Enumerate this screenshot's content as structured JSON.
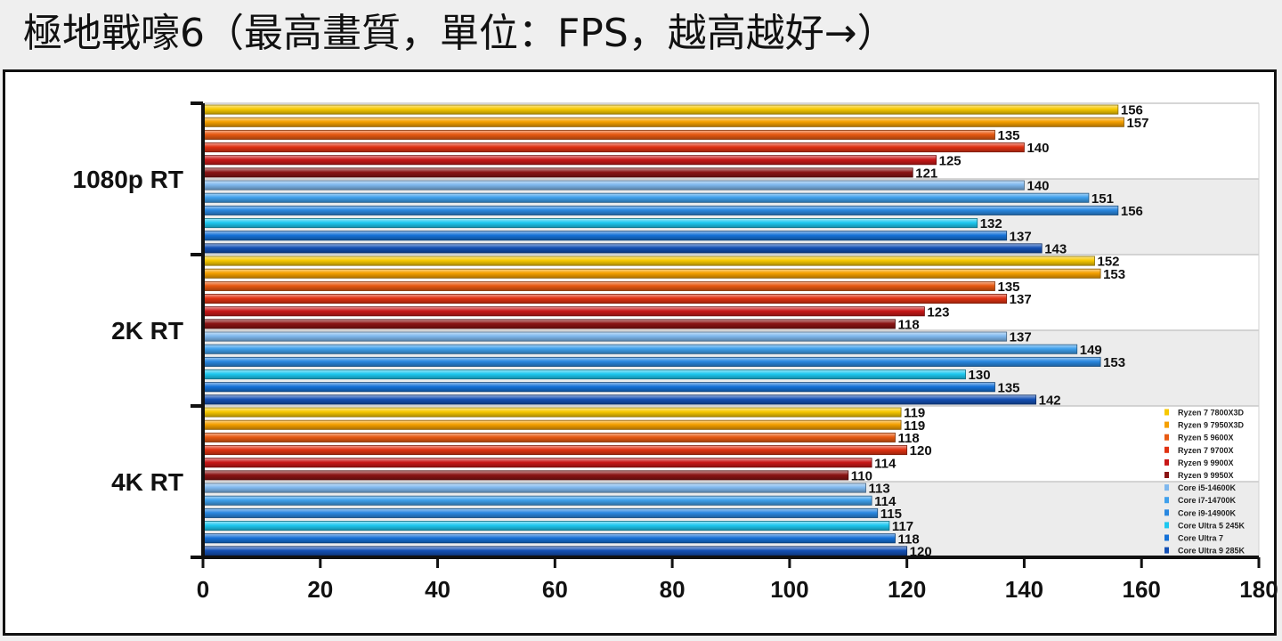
{
  "title": "極地戰嚎6（最高畫質，單位：FPS，越高越好→）",
  "chart_data": {
    "type": "bar",
    "orientation": "horizontal",
    "xlim": [
      0,
      180
    ],
    "xticks": [
      0,
      20,
      40,
      60,
      80,
      100,
      120,
      140,
      160,
      180
    ],
    "grid": false,
    "legend_position": "bottom-right",
    "categories": [
      "1080p RT",
      "2K RT",
      "4K RT"
    ],
    "series": [
      {
        "name": "Ryzen 7 7800X3D",
        "color": "#f7c800",
        "values": [
          156,
          152,
          119
        ]
      },
      {
        "name": "Ryzen 9 7950X3D",
        "color": "#f5a000",
        "values": [
          157,
          153,
          119
        ]
      },
      {
        "name": "Ryzen 5 9600X",
        "color": "#e85a12",
        "values": [
          135,
          135,
          118
        ]
      },
      {
        "name": "Ryzen 7 9700X",
        "color": "#e03212",
        "values": [
          140,
          137,
          120
        ]
      },
      {
        "name": "Ryzen 9 9900X",
        "color": "#c81818",
        "values": [
          125,
          123,
          114
        ]
      },
      {
        "name": "Ryzen 9 9950X",
        "color": "#8a1414",
        "values": [
          121,
          118,
          110
        ]
      },
      {
        "name": "Core i5-14600K",
        "color": "#7fb8ee",
        "values": [
          140,
          137,
          113
        ]
      },
      {
        "name": "Core i7-14700K",
        "color": "#3fa0ec",
        "values": [
          151,
          149,
          114
        ]
      },
      {
        "name": "Core i9-14900K",
        "color": "#2a88e0",
        "values": [
          156,
          153,
          115
        ]
      },
      {
        "name": "Core Ultra 5 245K",
        "color": "#1ec8f0",
        "values": [
          132,
          130,
          117
        ]
      },
      {
        "name": "Core Ultra 7",
        "color": "#1672d8",
        "values": [
          137,
          135,
          118
        ]
      },
      {
        "name": "Core Ultra 9 285K",
        "color": "#1450b4",
        "values": [
          143,
          142,
          120
        ]
      }
    ]
  }
}
